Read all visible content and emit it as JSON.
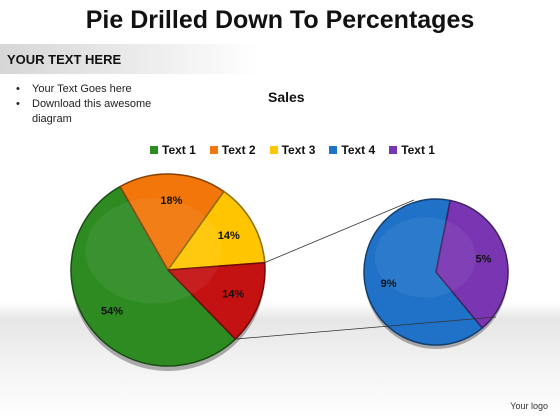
{
  "slide": {
    "title": "Pie Drilled Down To  Percentages",
    "header": "YOUR TEXT HERE",
    "bullets": [
      "Your Text Goes here",
      "Download this awesome diagram"
    ],
    "logo": "Your logo"
  },
  "chart_data": {
    "type": "pie",
    "title": "Sales",
    "legend_position": "top",
    "legend": [
      {
        "label": "Text 1",
        "color": "#2e8b22"
      },
      {
        "label": "Text 2",
        "color": "#f2760a"
      },
      {
        "label": "Text 3",
        "color": "#ffc600"
      },
      {
        "label": "Text 4",
        "color": "#1f72c8"
      },
      {
        "label": "Text 1",
        "color": "#7a36b2"
      }
    ],
    "main_pie": {
      "slices": [
        {
          "label": "54%",
          "value": 54,
          "color": "#2e8b22"
        },
        {
          "label": "18%",
          "value": 18,
          "color": "#f2760a"
        },
        {
          "label": "14%",
          "value": 14,
          "color": "#ffc600"
        },
        {
          "label": "14%",
          "value": 14,
          "color": "#c41212",
          "drilled": true
        }
      ]
    },
    "drill_pie": {
      "slices": [
        {
          "label": "9%",
          "value": 9,
          "color": "#1f72c8"
        },
        {
          "label": "5%",
          "value": 5,
          "color": "#7a36b2"
        }
      ]
    }
  }
}
